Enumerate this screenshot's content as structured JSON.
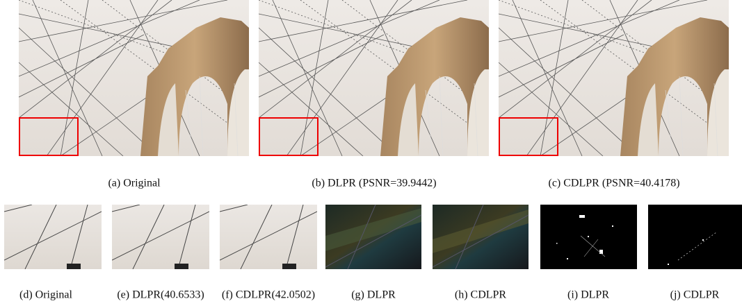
{
  "figure": {
    "top_row": [
      {
        "caption": "(a) Original"
      },
      {
        "caption": "(b) DLPR (PSNR=39.9442)"
      },
      {
        "caption": "(c) CDLPR (PSNR=40.4178)"
      }
    ],
    "bottom_row": [
      {
        "caption": "(d) Original"
      },
      {
        "caption": "(e) DLPR(40.6533)"
      },
      {
        "caption": "(f) CDLPR(42.0502)"
      },
      {
        "caption": "(g) DLPR"
      },
      {
        "caption": "(h) CDLPR"
      },
      {
        "caption": "(i) DLPR"
      },
      {
        "caption": "(j) CDLPR"
      }
    ]
  }
}
